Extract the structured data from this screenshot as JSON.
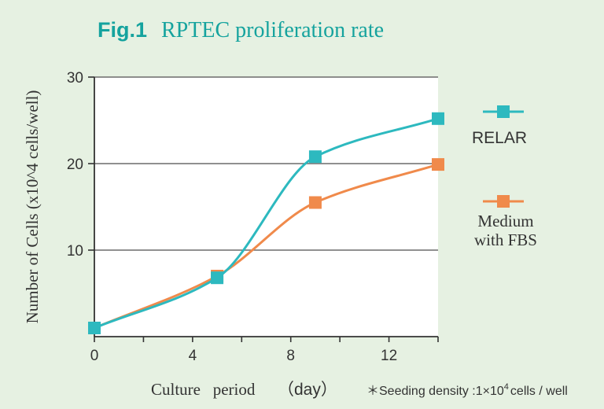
{
  "figure_label": "Fig.1",
  "chart_data": {
    "type": "line",
    "title": "RPTEC proliferation rate",
    "xlabel": "Culture period",
    "xlabel_unit": "（day）",
    "ylabel": "Number of Cells (x10^4 cells/well)",
    "xlim": [
      0,
      14
    ],
    "ylim": [
      0,
      30
    ],
    "xticks": [
      0,
      4,
      8,
      12
    ],
    "yticks": [
      10,
      20,
      30
    ],
    "grid": "horizontal",
    "series": [
      {
        "name": "RELAR",
        "color": "#2db9bf",
        "x": [
          0,
          5,
          9,
          14
        ],
        "y": [
          1,
          6.8,
          20.8,
          25.2
        ]
      },
      {
        "name": "Medium with FBS",
        "name_lines": [
          "Medium",
          "with FBS"
        ],
        "color": "#f08a4b",
        "x": [
          0,
          5,
          9,
          14
        ],
        "y": [
          1,
          7.0,
          15.5,
          19.9
        ]
      }
    ],
    "footnote": {
      "prefix": "＊Seeding density :1×10",
      "superscript": "4",
      "suffix": "cells / well"
    }
  }
}
